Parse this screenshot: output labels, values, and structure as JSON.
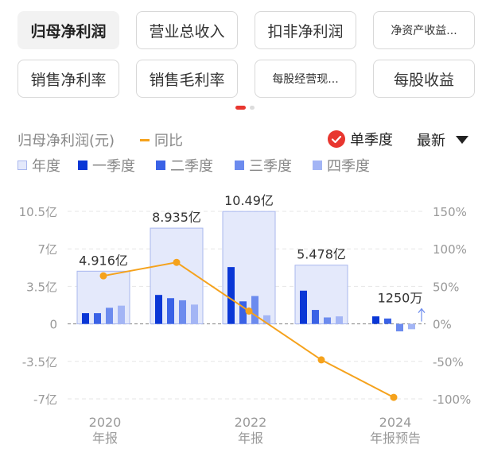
{
  "tabs": [
    {
      "label": "归母净利润",
      "active": true
    },
    {
      "label": "营业总收入",
      "active": false
    },
    {
      "label": "扣非净利润",
      "active": false
    },
    {
      "label": "净资产收益...",
      "active": false
    },
    {
      "label": "销售净利率",
      "active": false
    },
    {
      "label": "销售毛利率",
      "active": false
    },
    {
      "label": "每股经营现...",
      "active": false
    },
    {
      "label": "每股收益",
      "active": false
    }
  ],
  "controls": {
    "single_quarter_label": "单季度",
    "sort_label": "最新"
  },
  "legend": {
    "year": "年度",
    "q1": "一季度",
    "q2": "二季度",
    "q3": "三季度",
    "q4": "四季度"
  },
  "colors": {
    "year_fill": "#e4e9fb",
    "year_stroke": "#a9b7ee",
    "q1": "#0a37d6",
    "q2": "#3a62e6",
    "q3": "#6c8bee",
    "q4": "#a3b5f5",
    "yoy_line": "#f5a21c",
    "accent_red": "#e8362f"
  },
  "chart_data": {
    "type": "bar",
    "title": "",
    "ylabel_left": "归母净利润(元)",
    "ylabel_right": "同比",
    "left_ticks": [
      "10.5亿",
      "7亿",
      "3.5亿",
      "0",
      "-3.5亿",
      "-7亿"
    ],
    "right_ticks": [
      "150%",
      "100%",
      "50%",
      "0%",
      "-50%",
      "-100%"
    ],
    "ylim_left": [
      -7,
      10.5
    ],
    "ylim_right": [
      -100,
      150
    ],
    "x_labels": [
      {
        "year": "2020",
        "sub": "年报",
        "index": 0
      },
      {
        "year": "2022",
        "sub": "年报",
        "index": 2
      },
      {
        "year": "2024",
        "sub": "年报预告",
        "index": 4
      }
    ],
    "periods": [
      {
        "annual": 4.916,
        "annual_label": "4.916亿",
        "quarters": [
          1.0,
          1.0,
          1.5,
          1.7
        ],
        "yoy": 64
      },
      {
        "annual": 8.935,
        "annual_label": "8.935亿",
        "quarters": [
          2.7,
          2.4,
          2.2,
          1.8
        ],
        "yoy": 82
      },
      {
        "annual": 10.49,
        "annual_label": "10.49亿",
        "quarters": [
          5.3,
          2.1,
          2.6,
          0.8
        ],
        "yoy": 17
      },
      {
        "annual": 5.478,
        "annual_label": "5.478亿",
        "quarters": [
          3.1,
          1.3,
          0.6,
          0.7
        ],
        "yoy": -48
      },
      {
        "annual": 0.125,
        "annual_label": "1250万",
        "quarters": [
          0.7,
          0.5,
          -0.7,
          -0.5
        ],
        "yoy": -98
      }
    ]
  }
}
